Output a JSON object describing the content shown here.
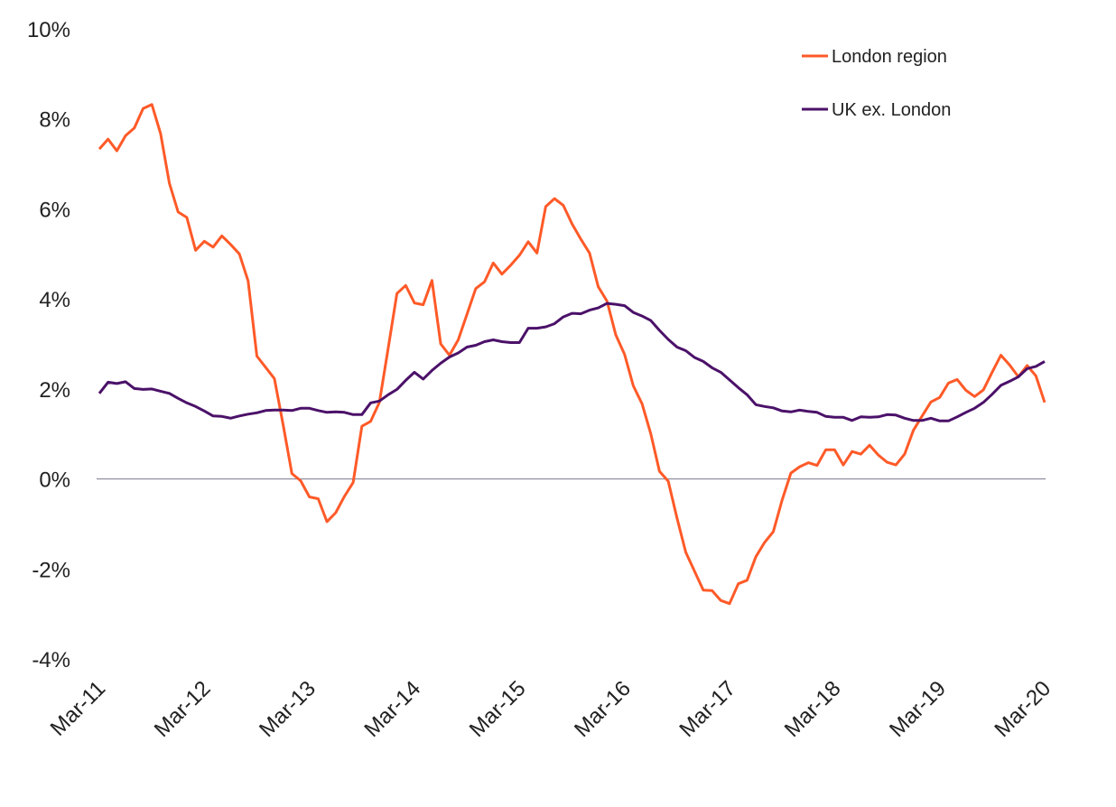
{
  "chart_data": {
    "type": "line",
    "title": "",
    "xlabel": "",
    "ylabel": "",
    "x_start": "Mar-11",
    "x_frequency": "monthly",
    "x_tick_labels": [
      "Mar-11",
      "Mar-12",
      "Mar-13",
      "Mar-14",
      "Mar-15",
      "Mar-16",
      "Mar-17",
      "Mar-18",
      "Mar-19",
      "Mar-20"
    ],
    "y_tick_labels": [
      "10%",
      "8%",
      "6%",
      "4%",
      "2%",
      "0%",
      "-2%",
      "-4%"
    ],
    "ylim": [
      -4,
      10
    ],
    "grid": false,
    "zero_line": true,
    "legend_position": "top-right",
    "series": [
      {
        "name": "London region",
        "color": "#FF5A28",
        "values": [
          7.33,
          7.55,
          7.29,
          7.63,
          7.8,
          8.23,
          8.32,
          7.67,
          6.57,
          5.93,
          5.81,
          5.08,
          5.28,
          5.15,
          5.4,
          5.21,
          5.0,
          4.4,
          2.73,
          2.48,
          2.23,
          1.2,
          0.12,
          -0.04,
          -0.4,
          -0.44,
          -0.95,
          -0.75,
          -0.39,
          -0.08,
          1.17,
          1.28,
          1.7,
          2.9,
          4.12,
          4.3,
          3.91,
          3.87,
          4.41,
          3.0,
          2.75,
          3.09,
          3.66,
          4.23,
          4.38,
          4.8,
          4.55,
          4.75,
          4.97,
          5.27,
          5.02,
          6.05,
          6.23,
          6.08,
          5.67,
          5.33,
          5.02,
          4.27,
          3.95,
          3.2,
          2.77,
          2.07,
          1.67,
          1.0,
          0.17,
          -0.05,
          -0.87,
          -1.63,
          -2.05,
          -2.47,
          -2.48,
          -2.7,
          -2.77,
          -2.33,
          -2.25,
          -1.73,
          -1.41,
          -1.17,
          -0.47,
          0.13,
          0.27,
          0.36,
          0.3,
          0.65,
          0.65,
          0.31,
          0.61,
          0.55,
          0.75,
          0.53,
          0.37,
          0.31,
          0.55,
          1.08,
          1.4,
          1.71,
          1.81,
          2.13,
          2.21,
          1.97,
          1.83,
          1.98,
          2.37,
          2.75,
          2.53,
          2.27,
          2.52,
          2.29,
          1.7
        ]
      },
      {
        "name": "UK ex. London",
        "color": "#4B1169",
        "values": [
          1.9,
          2.15,
          2.12,
          2.16,
          2.01,
          1.99,
          2.0,
          1.95,
          1.9,
          1.79,
          1.69,
          1.61,
          1.51,
          1.4,
          1.39,
          1.35,
          1.4,
          1.44,
          1.47,
          1.52,
          1.53,
          1.53,
          1.52,
          1.57,
          1.57,
          1.52,
          1.48,
          1.49,
          1.48,
          1.43,
          1.43,
          1.69,
          1.73,
          1.87,
          1.99,
          2.19,
          2.37,
          2.22,
          2.41,
          2.57,
          2.71,
          2.8,
          2.93,
          2.97,
          3.05,
          3.09,
          3.05,
          3.03,
          3.03,
          3.35,
          3.35,
          3.38,
          3.45,
          3.6,
          3.68,
          3.67,
          3.75,
          3.8,
          3.9,
          3.88,
          3.85,
          3.7,
          3.62,
          3.52,
          3.3,
          3.1,
          2.93,
          2.85,
          2.7,
          2.61,
          2.47,
          2.37,
          2.2,
          2.03,
          1.87,
          1.65,
          1.61,
          1.58,
          1.51,
          1.49,
          1.53,
          1.5,
          1.48,
          1.39,
          1.37,
          1.37,
          1.3,
          1.38,
          1.37,
          1.38,
          1.43,
          1.42,
          1.35,
          1.3,
          1.3,
          1.35,
          1.29,
          1.29,
          1.38,
          1.48,
          1.57,
          1.7,
          1.88,
          2.08,
          2.17,
          2.27,
          2.45,
          2.5,
          2.61
        ]
      }
    ]
  }
}
